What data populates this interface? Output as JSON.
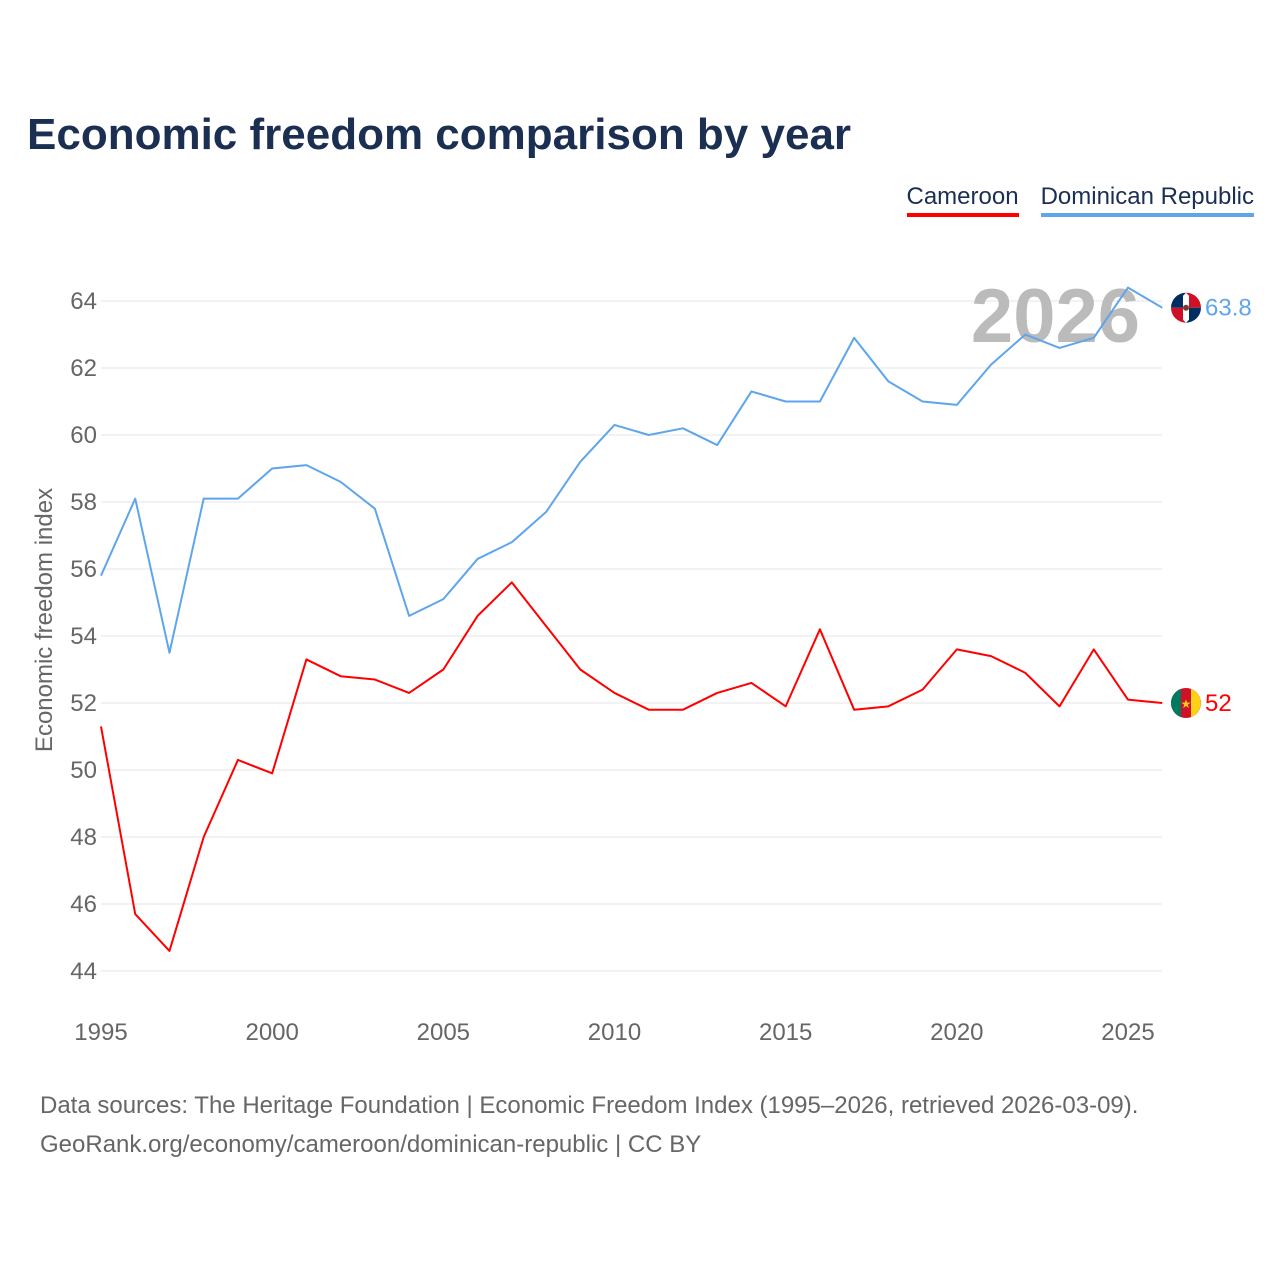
{
  "title": "Economic freedom comparison by year",
  "source_line1": "Data sources: The Heritage Foundation | Economic Freedom Index (1995–2026, retrieved 2026-03-09).",
  "source_line2": "GeoRank.org/economy/cameroon/dominican-republic | CC BY",
  "chart_data": {
    "type": "line",
    "title": "Economic freedom comparison by year",
    "xlabel": "",
    "ylabel": "Economic freedom index",
    "xlim": [
      1995,
      2026
    ],
    "ylim": [
      44,
      64
    ],
    "yticks": [
      44,
      46,
      48,
      50,
      52,
      54,
      56,
      58,
      60,
      62,
      64
    ],
    "xticks": [
      1995,
      2000,
      2005,
      2010,
      2015,
      2020,
      2025
    ],
    "year_watermark": "2026",
    "legend_position": "top-right",
    "grid": true,
    "x": [
      1995,
      1996,
      1997,
      1998,
      1999,
      2000,
      2001,
      2002,
      2003,
      2004,
      2005,
      2006,
      2007,
      2008,
      2009,
      2010,
      2011,
      2012,
      2013,
      2014,
      2015,
      2016,
      2017,
      2018,
      2019,
      2020,
      2021,
      2022,
      2023,
      2024,
      2025,
      2026
    ],
    "series": [
      {
        "name": "Cameroon",
        "color": "#ff0000",
        "end_label": "52",
        "values": [
          51.3,
          45.7,
          44.6,
          48.0,
          50.3,
          49.9,
          53.3,
          52.8,
          52.7,
          52.3,
          53.0,
          54.6,
          55.6,
          54.3,
          53.0,
          52.3,
          51.8,
          51.8,
          52.3,
          52.6,
          51.9,
          54.2,
          51.8,
          51.9,
          52.4,
          53.6,
          53.4,
          52.9,
          51.9,
          53.6,
          52.1,
          52.0
        ]
      },
      {
        "name": "Dominican Republic",
        "color": "#5ea5eb",
        "end_label": "63.8",
        "values": [
          55.8,
          58.1,
          53.5,
          58.1,
          58.1,
          59.0,
          59.1,
          58.6,
          57.8,
          54.6,
          55.1,
          56.3,
          56.8,
          57.7,
          59.2,
          60.3,
          60.0,
          60.2,
          59.7,
          61.3,
          61.0,
          61.0,
          62.9,
          61.6,
          61.0,
          60.9,
          62.1,
          63.0,
          62.6,
          62.9,
          64.4,
          63.8
        ]
      }
    ]
  }
}
